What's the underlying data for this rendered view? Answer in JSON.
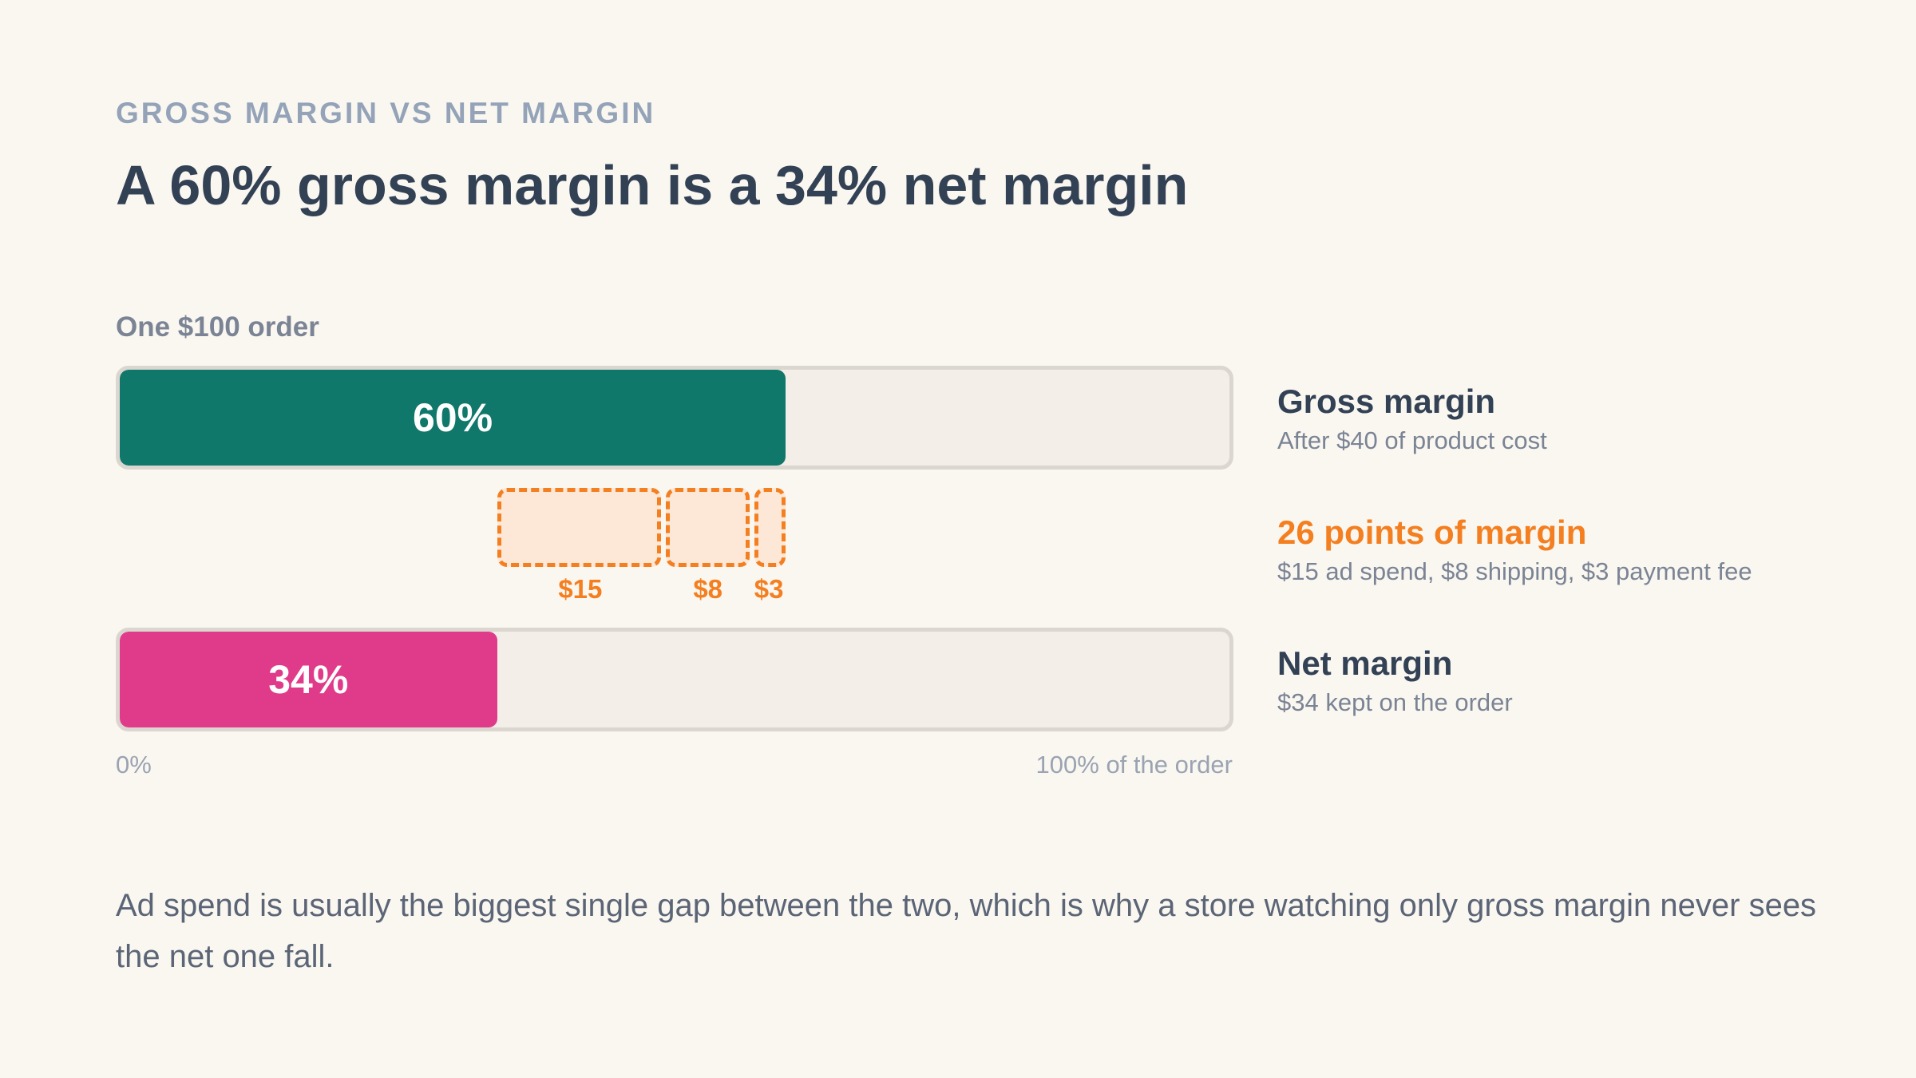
{
  "eyebrow": "GROSS MARGIN VS NET MARGIN",
  "title": "A 60% gross margin is a 34% net margin",
  "footnote": "Ad spend is usually the biggest single gap between the two, which is why a store watching only gross margin never sees the net one fall.",
  "colors": {
    "gross": "#10776b",
    "net": "#e03a8b",
    "costs": "#f47f20",
    "track": "#f3efe8"
  },
  "chart_data": {
    "type": "bar",
    "title": "One $100 order",
    "xlim": [
      0,
      100
    ],
    "axis": {
      "min_label": "0%",
      "max_label": "100% of the order"
    },
    "bars": [
      {
        "key": "gross",
        "value": 60,
        "label": "60%",
        "legend_title": "Gross margin",
        "legend_sub": "After $40 of product cost"
      },
      {
        "key": "net",
        "value": 34,
        "label": "34%",
        "legend_title": "Net margin",
        "legend_sub": "$34 kept on the order"
      }
    ],
    "costs": {
      "legend_title": "26 points of margin",
      "legend_sub": "$15 ad spend, $8 shipping, $3 payment fee",
      "segments": [
        {
          "name": "ad spend",
          "value": 15,
          "label": "$15"
        },
        {
          "name": "shipping",
          "value": 8,
          "label": "$8"
        },
        {
          "name": "payment fee",
          "value": 3,
          "label": "$3"
        }
      ]
    }
  }
}
